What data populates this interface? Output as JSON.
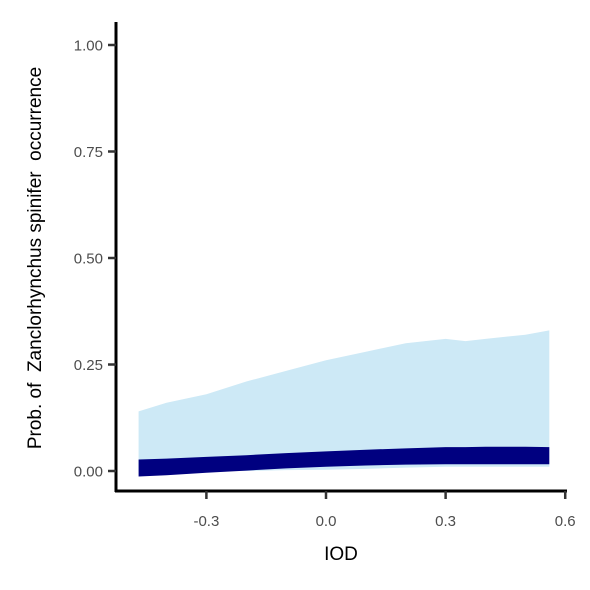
{
  "chart_data": {
    "type": "area",
    "xlabel": "IOD",
    "ylabel": "Prob. of  Zanclorhynchus spinifer  occurrence",
    "xlim": [
      -0.52,
      0.61
    ],
    "ylim": [
      -0.05,
      1.05
    ],
    "x_ticks": [
      -0.3,
      0.0,
      0.3,
      0.6
    ],
    "x_tick_labels": [
      "-0.3",
      "0.0",
      "0.3",
      "0.6"
    ],
    "y_ticks": [
      0.0,
      0.25,
      0.5,
      0.75,
      1.0
    ],
    "y_tick_labels": [
      "0.00",
      "0.25",
      "0.50",
      "0.75",
      "1.00"
    ],
    "grid": false,
    "legend": "none",
    "x": [
      -0.47,
      -0.4,
      -0.3,
      -0.2,
      -0.1,
      0.0,
      0.1,
      0.2,
      0.3,
      0.35,
      0.4,
      0.5,
      0.56
    ],
    "series": [
      {
        "role": "credible-interval-outer",
        "color": "#cde9f6",
        "lower": [
          0.0,
          0.0,
          0.0,
          0.0,
          0.002,
          0.003,
          0.005,
          0.008,
          0.01,
          0.01,
          0.01,
          0.01,
          0.01
        ],
        "upper": [
          0.14,
          0.16,
          0.18,
          0.21,
          0.235,
          0.26,
          0.28,
          0.3,
          0.31,
          0.305,
          0.31,
          0.32,
          0.33
        ]
      },
      {
        "role": "credible-interval-inner",
        "color": "#000080",
        "lower": [
          -0.013,
          -0.01,
          -0.004,
          0.001,
          0.006,
          0.01,
          0.013,
          0.015,
          0.016,
          0.016,
          0.016,
          0.016,
          0.016
        ],
        "upper": [
          0.027,
          0.029,
          0.033,
          0.037,
          0.042,
          0.046,
          0.05,
          0.053,
          0.056,
          0.056,
          0.057,
          0.057,
          0.056
        ]
      }
    ]
  }
}
